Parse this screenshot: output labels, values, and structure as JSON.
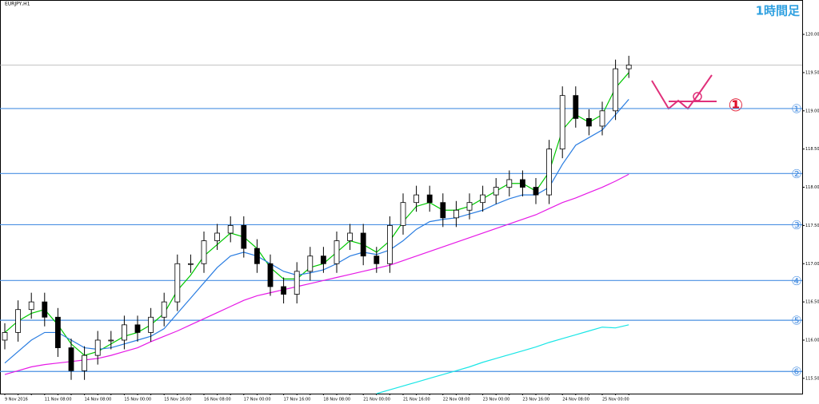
{
  "chart_data": {
    "type": "candlestick",
    "title": "EURJPY,H1",
    "annotations": {
      "timeframe": "1時間足",
      "marker": "①"
    },
    "categories": [
      "9 Nov 2016",
      null,
      null,
      "11 Nov 08:00",
      null,
      null,
      "14 Nov 08:00",
      null,
      null,
      "15 Nov 00:00",
      null,
      null,
      "15 Nov 16:00",
      null,
      null,
      "16 Nov 08:00",
      null,
      null,
      "17 Nov 00:00",
      null,
      null,
      "17 Nov 16:00",
      null,
      null,
      "18 Nov 08:00",
      null,
      null,
      "21 Nov 00:00",
      null,
      null,
      "21 Nov 16:00",
      null,
      null,
      "22 Nov 08:00",
      null,
      null,
      "23 Nov 00:00",
      null,
      null,
      "23 Nov 16:00",
      null,
      null,
      "24 Nov 08:00",
      null,
      null,
      "25 Nov 00:00",
      null,
      null
    ],
    "open": [
      116.0,
      116.1,
      116.4,
      116.5,
      116.3,
      115.9,
      115.6,
      115.8,
      116.0,
      116.0,
      116.2,
      116.1,
      116.3,
      116.5,
      117.0,
      117.0,
      117.3,
      117.4,
      117.5,
      117.2,
      117.0,
      116.7,
      116.6,
      116.9,
      117.1,
      117.0,
      117.3,
      117.4,
      117.1,
      117.0,
      117.5,
      117.8,
      117.9,
      117.8,
      117.6,
      117.7,
      117.8,
      117.9,
      118.0,
      118.1,
      118.0,
      117.9,
      118.5,
      119.2,
      118.9,
      118.8,
      119.0,
      119.55
    ],
    "high": [
      116.22,
      116.52,
      116.62,
      116.62,
      116.42,
      116.02,
      115.92,
      116.12,
      116.12,
      116.32,
      116.32,
      116.42,
      116.62,
      117.12,
      117.12,
      117.42,
      117.52,
      117.62,
      117.62,
      117.32,
      117.12,
      116.82,
      117.02,
      117.22,
      117.22,
      117.42,
      117.52,
      117.52,
      117.22,
      117.62,
      117.92,
      118.02,
      118.02,
      117.92,
      117.82,
      117.92,
      118.02,
      118.12,
      118.22,
      118.22,
      118.12,
      118.62,
      119.32,
      119.32,
      119.02,
      119.12,
      119.67,
      119.72
    ],
    "low": [
      115.88,
      115.98,
      116.28,
      116.18,
      115.78,
      115.48,
      115.48,
      115.68,
      115.88,
      115.88,
      115.98,
      115.98,
      116.18,
      116.38,
      116.88,
      116.88,
      117.18,
      117.28,
      117.08,
      116.88,
      116.58,
      116.48,
      116.48,
      116.78,
      116.88,
      116.88,
      117.18,
      116.98,
      116.88,
      116.88,
      117.38,
      117.68,
      117.68,
      117.48,
      117.48,
      117.58,
      117.68,
      117.78,
      117.88,
      117.88,
      117.78,
      117.78,
      118.38,
      118.78,
      118.68,
      118.68,
      118.88,
      119.43
    ],
    "close": [
      116.1,
      116.4,
      116.5,
      116.3,
      115.9,
      115.6,
      115.8,
      116.0,
      116.0,
      116.2,
      116.1,
      116.3,
      116.5,
      117.0,
      117.0,
      117.3,
      117.4,
      117.5,
      117.2,
      117.0,
      116.7,
      116.6,
      116.9,
      117.1,
      117.0,
      117.3,
      117.4,
      117.1,
      117.0,
      117.5,
      117.8,
      117.9,
      117.8,
      117.6,
      117.7,
      117.8,
      117.9,
      118.0,
      118.1,
      118.0,
      117.9,
      118.5,
      119.2,
      118.9,
      118.8,
      119.0,
      119.55,
      119.6
    ],
    "series": [
      {
        "color": "#00c800",
        "values": [
          116.1,
          116.25,
          116.35,
          116.4,
          116.2,
          115.95,
          115.8,
          115.85,
          115.95,
          116.05,
          116.1,
          116.2,
          116.35,
          116.65,
          116.85,
          117.1,
          117.25,
          117.4,
          117.35,
          117.2,
          116.95,
          116.8,
          116.8,
          116.95,
          117.0,
          117.15,
          117.3,
          117.25,
          117.15,
          117.3,
          117.55,
          117.75,
          117.8,
          117.7,
          117.7,
          117.75,
          117.85,
          117.95,
          118.05,
          118.05,
          117.95,
          118.2,
          118.75,
          118.95,
          118.85,
          118.95,
          119.3,
          119.5
        ]
      },
      {
        "color": "#2a7de1",
        "values": [
          115.7,
          115.85,
          116.0,
          116.1,
          116.1,
          116.0,
          115.9,
          115.88,
          115.9,
          115.95,
          116.0,
          116.05,
          116.15,
          116.35,
          116.55,
          116.75,
          116.95,
          117.1,
          117.15,
          117.1,
          117.0,
          116.9,
          116.85,
          116.88,
          116.92,
          117.0,
          117.1,
          117.15,
          117.12,
          117.18,
          117.3,
          117.45,
          117.55,
          117.58,
          117.6,
          117.65,
          117.7,
          117.78,
          117.85,
          117.9,
          117.9,
          118.0,
          118.3,
          118.55,
          118.65,
          118.75,
          118.95,
          119.15
        ]
      },
      {
        "color": "#e619e6",
        "values": [
          115.55,
          115.6,
          115.65,
          115.68,
          115.7,
          115.72,
          115.74,
          115.76,
          115.8,
          115.85,
          115.9,
          115.98,
          116.05,
          116.12,
          116.2,
          116.28,
          116.36,
          116.44,
          116.52,
          116.58,
          116.62,
          116.66,
          116.7,
          116.74,
          116.78,
          116.82,
          116.86,
          116.9,
          116.94,
          116.98,
          117.04,
          117.1,
          117.16,
          117.22,
          117.28,
          117.34,
          117.4,
          117.46,
          117.52,
          117.58,
          117.64,
          117.72,
          117.8,
          117.86,
          117.93,
          118.0,
          118.08,
          118.17
        ]
      },
      {
        "color": "#19e6e6",
        "values": [
          null,
          null,
          null,
          null,
          null,
          null,
          null,
          null,
          null,
          null,
          null,
          null,
          null,
          null,
          null,
          null,
          null,
          null,
          null,
          null,
          null,
          null,
          null,
          null,
          null,
          null,
          null,
          null,
          115.3,
          115.35,
          115.4,
          115.45,
          115.5,
          115.55,
          115.6,
          115.65,
          115.71,
          115.76,
          115.81,
          115.86,
          115.91,
          115.97,
          116.02,
          116.07,
          116.12,
          116.17,
          116.16,
          116.2
        ]
      }
    ],
    "levels": [
      {
        "label": "①",
        "value": 119.03
      },
      {
        "label": "②",
        "value": 118.18
      },
      {
        "label": "③",
        "value": 117.51
      },
      {
        "label": "④",
        "value": 116.78
      },
      {
        "label": "⑤",
        "value": 116.26
      },
      {
        "label": "⑥",
        "value": 115.59
      }
    ],
    "current_price": 119.6,
    "ylim": [
      115.3,
      120.45
    ],
    "yticks": [
      {
        "value": 115.5,
        "label": "115.500"
      },
      {
        "value": 116,
        "label": "116.000"
      },
      {
        "value": 116.5,
        "label": "116.500"
      },
      {
        "value": 117,
        "label": "117.000"
      },
      {
        "value": 117.5,
        "label": "117.500"
      },
      {
        "value": 118,
        "label": "118.000"
      },
      {
        "value": 118.5,
        "label": "118.500"
      },
      {
        "value": 119,
        "label": "119.000"
      },
      {
        "value": 119.5,
        "label": "119.500"
      },
      {
        "value": 120,
        "label": "120.000"
      }
    ],
    "up_color": "#ffffff",
    "down_color": "#000000",
    "level_color": "#4a90e2"
  }
}
